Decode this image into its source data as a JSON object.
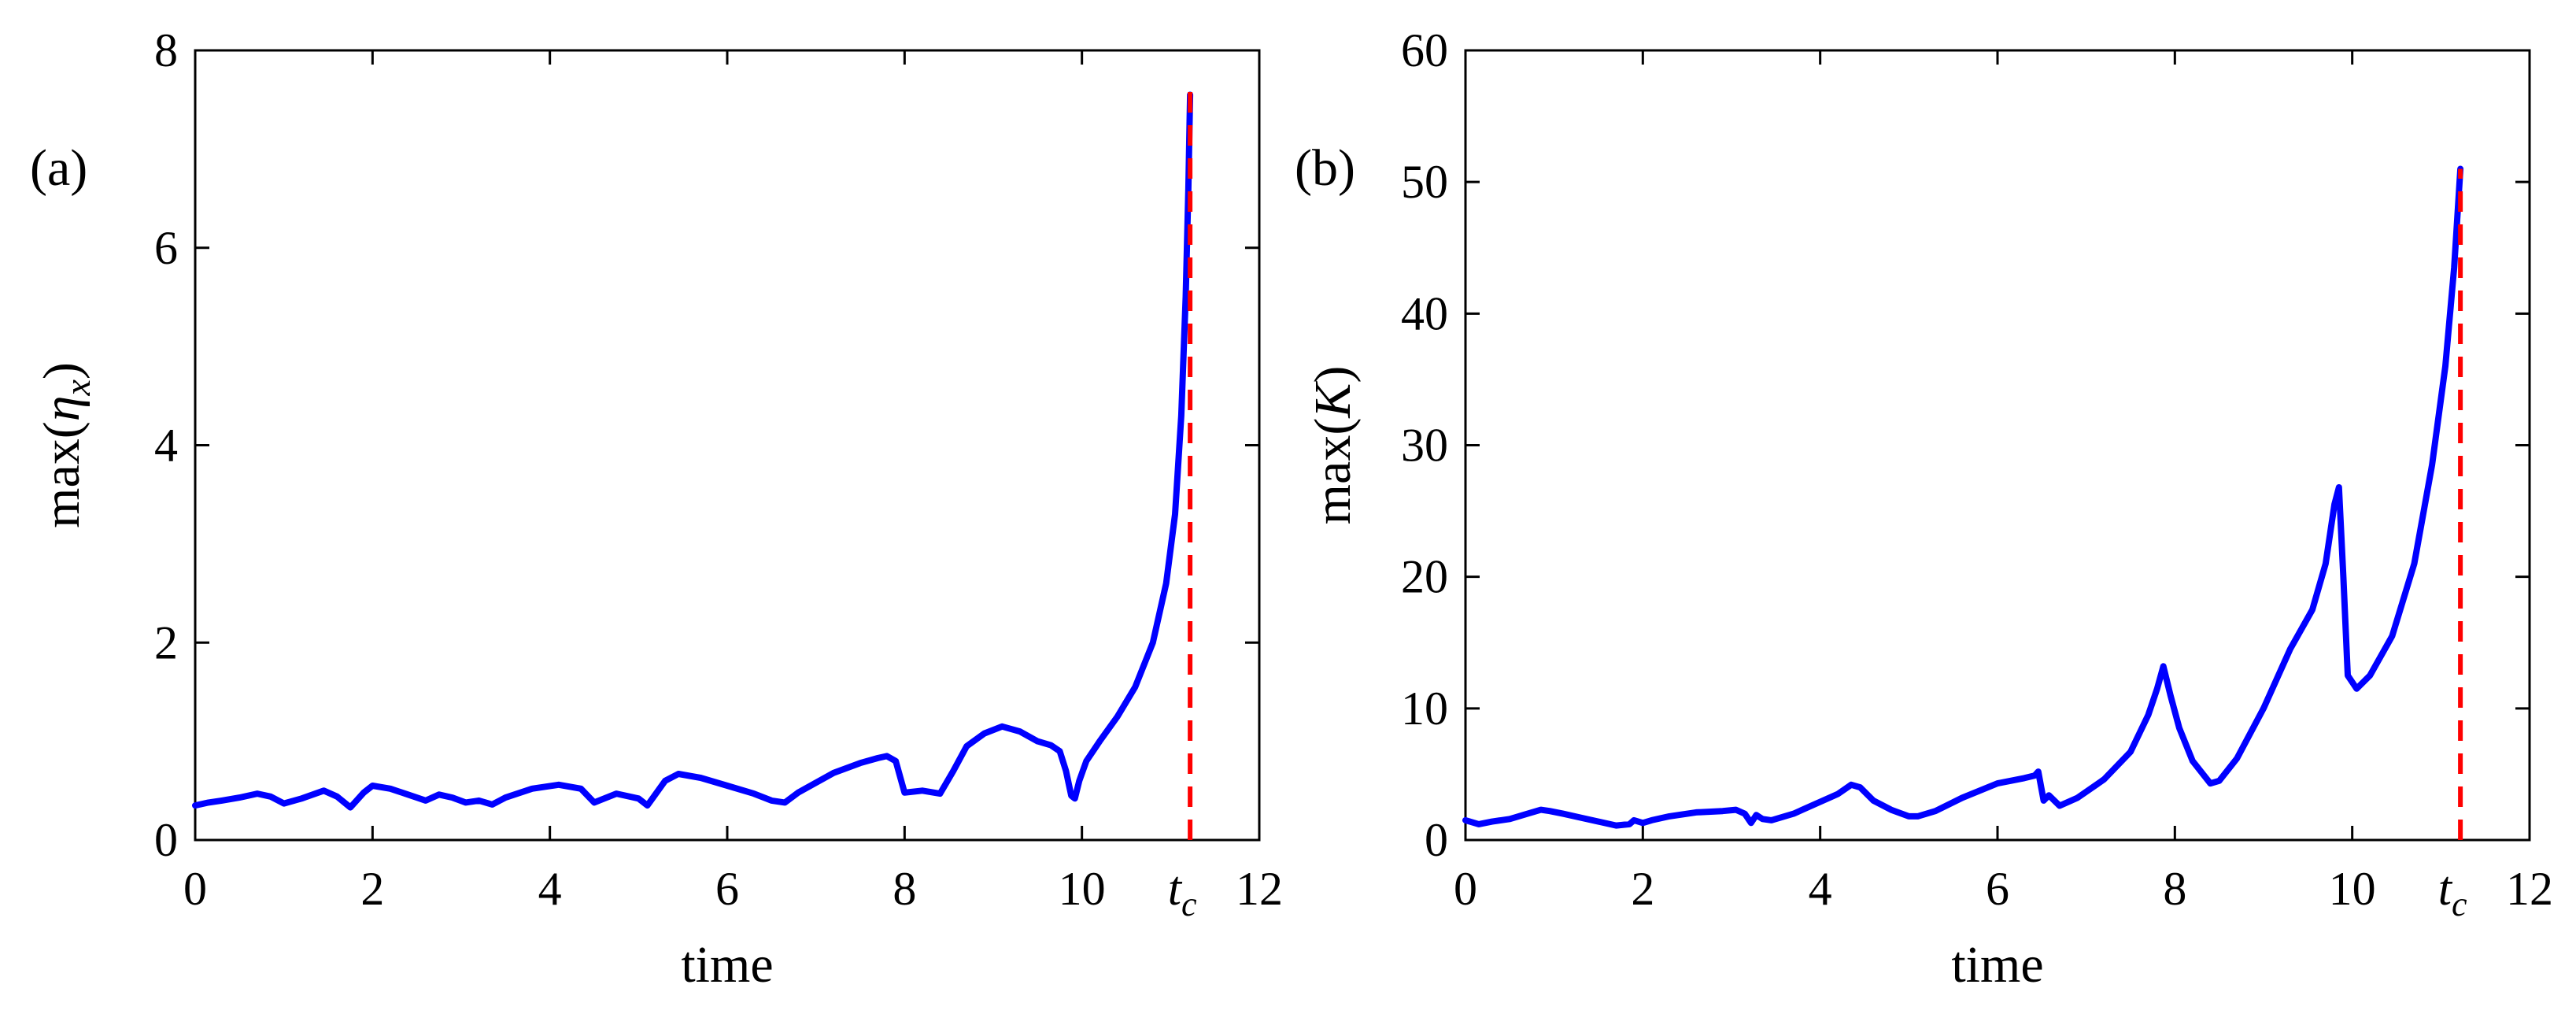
{
  "chart_data": [
    {
      "type": "line",
      "panel_label": "(a)",
      "xlabel": "time",
      "ylabel": "max(η_x)",
      "ylabel_parts": {
        "prefix": "max(",
        "sym": "η",
        "sub": "x",
        "suffix": ")"
      },
      "xlim": [
        0,
        12
      ],
      "ylim": [
        0,
        8
      ],
      "xticks": [
        0,
        2,
        4,
        6,
        8,
        10,
        12
      ],
      "xtick_labels": [
        "0",
        "2",
        "4",
        "6",
        "8",
        "10",
        "12"
      ],
      "yticks": [
        0,
        2,
        4,
        6,
        8
      ],
      "ytick_labels": [
        "0",
        "2",
        "4",
        "6",
        "8"
      ],
      "tc": {
        "x": 11.22,
        "label": "t",
        "sub": "c",
        "y_top": 7.58
      },
      "series": [
        {
          "color": "#0000ff",
          "x": [
            0,
            0.15,
            0.3,
            0.5,
            0.7,
            0.85,
            1.0,
            1.2,
            1.45,
            1.6,
            1.75,
            1.9,
            2.0,
            2.2,
            2.4,
            2.6,
            2.75,
            2.9,
            3.05,
            3.2,
            3.35,
            3.5,
            3.8,
            4.1,
            4.35,
            4.5,
            4.75,
            5.0,
            5.1,
            5.3,
            5.45,
            5.7,
            6.0,
            6.3,
            6.5,
            6.65,
            6.8,
            7.2,
            7.5,
            7.7,
            7.8,
            7.9,
            8.0,
            8.2,
            8.4,
            8.55,
            8.7,
            8.9,
            9.1,
            9.3,
            9.5,
            9.65,
            9.75,
            9.82,
            9.88,
            9.92,
            9.97,
            10.05,
            10.2,
            10.4,
            10.6,
            10.8,
            10.95,
            11.05,
            11.12,
            11.17,
            11.2,
            11.22
          ],
          "y": [
            0.35,
            0.38,
            0.4,
            0.43,
            0.47,
            0.44,
            0.37,
            0.42,
            0.5,
            0.44,
            0.33,
            0.48,
            0.55,
            0.52,
            0.46,
            0.4,
            0.46,
            0.43,
            0.38,
            0.4,
            0.36,
            0.43,
            0.52,
            0.56,
            0.52,
            0.38,
            0.47,
            0.42,
            0.35,
            0.6,
            0.67,
            0.63,
            0.55,
            0.47,
            0.4,
            0.38,
            0.48,
            0.68,
            0.78,
            0.83,
            0.85,
            0.8,
            0.48,
            0.5,
            0.47,
            0.7,
            0.95,
            1.08,
            1.15,
            1.1,
            1.0,
            0.96,
            0.9,
            0.7,
            0.45,
            0.42,
            0.6,
            0.8,
            1.0,
            1.25,
            1.55,
            2.0,
            2.6,
            3.3,
            4.3,
            5.5,
            6.6,
            7.55
          ]
        }
      ]
    },
    {
      "type": "line",
      "panel_label": "(b)",
      "xlabel": "time",
      "ylabel": "max(K)",
      "ylabel_parts": {
        "prefix": "max(",
        "sym": "K",
        "sub": "",
        "suffix": ")"
      },
      "xlim": [
        0,
        12
      ],
      "ylim": [
        0,
        60
      ],
      "xticks": [
        0,
        2,
        4,
        6,
        8,
        10,
        12
      ],
      "xtick_labels": [
        "0",
        "2",
        "4",
        "6",
        "8",
        "10",
        "12"
      ],
      "yticks": [
        0,
        10,
        20,
        30,
        40,
        50,
        60
      ],
      "ytick_labels": [
        "0",
        "10",
        "20",
        "30",
        "40",
        "50",
        "60"
      ],
      "tc": {
        "x": 11.22,
        "label": "t",
        "sub": "c",
        "y_top": 51
      },
      "series": [
        {
          "color": "#0000ff",
          "x": [
            0,
            0.15,
            0.3,
            0.5,
            0.7,
            0.85,
            0.95,
            1.1,
            1.3,
            1.5,
            1.7,
            1.85,
            1.9,
            2.0,
            2.1,
            2.3,
            2.6,
            2.9,
            3.05,
            3.15,
            3.22,
            3.28,
            3.35,
            3.45,
            3.7,
            4.0,
            4.2,
            4.35,
            4.45,
            4.6,
            4.8,
            5.0,
            5.1,
            5.3,
            5.6,
            6.0,
            6.3,
            6.42,
            6.46,
            6.52,
            6.58,
            6.7,
            6.9,
            7.2,
            7.5,
            7.7,
            7.8,
            7.87,
            7.95,
            8.05,
            8.2,
            8.4,
            8.5,
            8.7,
            9.0,
            9.3,
            9.55,
            9.7,
            9.8,
            9.85,
            9.9,
            9.95,
            10.05,
            10.2,
            10.45,
            10.7,
            10.9,
            11.05,
            11.15,
            11.22
          ],
          "y": [
            1.5,
            1.2,
            1.4,
            1.6,
            2.0,
            2.3,
            2.2,
            2.0,
            1.7,
            1.4,
            1.1,
            1.2,
            1.5,
            1.3,
            1.5,
            1.8,
            2.1,
            2.2,
            2.3,
            2.0,
            1.3,
            1.9,
            1.6,
            1.5,
            2.0,
            2.9,
            3.5,
            4.2,
            4.0,
            3.0,
            2.3,
            1.8,
            1.8,
            2.2,
            3.2,
            4.3,
            4.7,
            4.9,
            5.2,
            3.0,
            3.4,
            2.6,
            3.2,
            4.6,
            6.7,
            9.5,
            11.5,
            13.2,
            11.0,
            8.5,
            6.0,
            4.3,
            4.5,
            6.2,
            10.0,
            14.5,
            17.5,
            21.0,
            25.5,
            26.8,
            20.0,
            12.5,
            11.5,
            12.5,
            15.5,
            21.0,
            28.5,
            36.0,
            43.5,
            51.0
          ]
        }
      ]
    }
  ]
}
